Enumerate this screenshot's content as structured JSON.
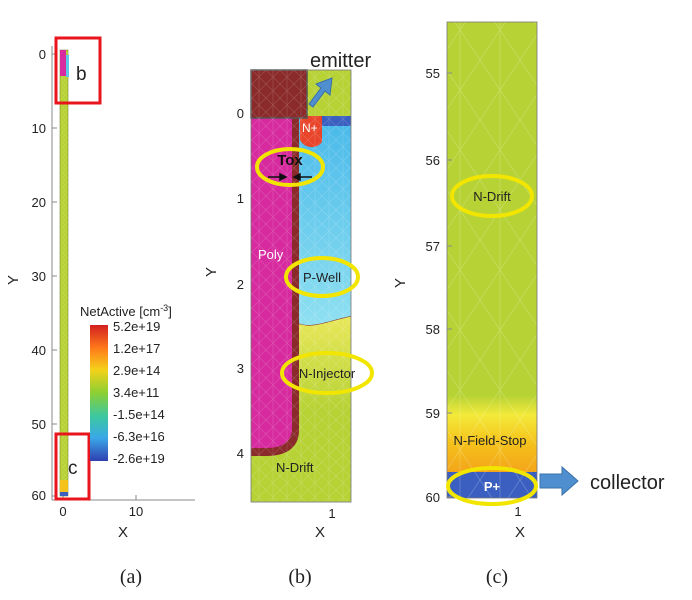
{
  "colors": {
    "drift": "#b6d235",
    "pwell": "#5cc8e8",
    "poly": "#d62a9e",
    "metal": "#8a2a2a",
    "nplus": "#e8452a",
    "pplus": "#3a5fc0",
    "stop": "#f5c21b",
    "highlight_ellipse": "#f2e600",
    "highlight_box": "#e8161c",
    "arrow": "#4f8fd0"
  },
  "panel_a": {
    "caption": "(a)",
    "y_label": "Y",
    "x_label": "X",
    "y_ticks": [
      "0",
      "10",
      "20",
      "30",
      "40",
      "50",
      "60"
    ],
    "x_ticks": [
      "0",
      "10"
    ],
    "box_b_label": "b",
    "box_c_label": "c",
    "legend": {
      "title": "NetActive [cm",
      "title_sup": "-3",
      "title_end": "]",
      "entries": [
        {
          "label": "5.2e+19",
          "color": "#d21f1f"
        },
        {
          "label": "1.2e+17",
          "color": "#ff7a1a"
        },
        {
          "label": "2.9e+14",
          "color": "#f4d21a"
        },
        {
          "label": "3.4e+11",
          "color": "#8ccf34"
        },
        {
          "label": "-1.5e+14",
          "color": "#3cc8a0"
        },
        {
          "label": "-6.3e+16",
          "color": "#3aa8e8"
        },
        {
          "label": "-2.6e+19",
          "color": "#2f3fb0"
        }
      ]
    }
  },
  "panel_b": {
    "caption": "(b)",
    "y_label": "Y",
    "x_label": "X",
    "y_ticks": [
      "0",
      "1",
      "2",
      "3",
      "4"
    ],
    "x_ticks": [
      "1"
    ],
    "emitter_label": "emitter",
    "nplus_label": "N+",
    "tox_label": "Tox",
    "poly_label": "Poly",
    "pwell_label": "P-Well",
    "ninjector_label": "N-Injector",
    "ndrift_label": "N-Drift"
  },
  "panel_c": {
    "caption": "(c)",
    "y_label": "Y",
    "x_label": "X",
    "y_ticks": [
      "55",
      "56",
      "57",
      "58",
      "59",
      "60"
    ],
    "x_ticks": [
      "1"
    ],
    "ndrift_label": "N-Drift",
    "fieldstop_label": "N-Field-Stop",
    "pplus_label": "P+",
    "collector_label": "collector"
  }
}
